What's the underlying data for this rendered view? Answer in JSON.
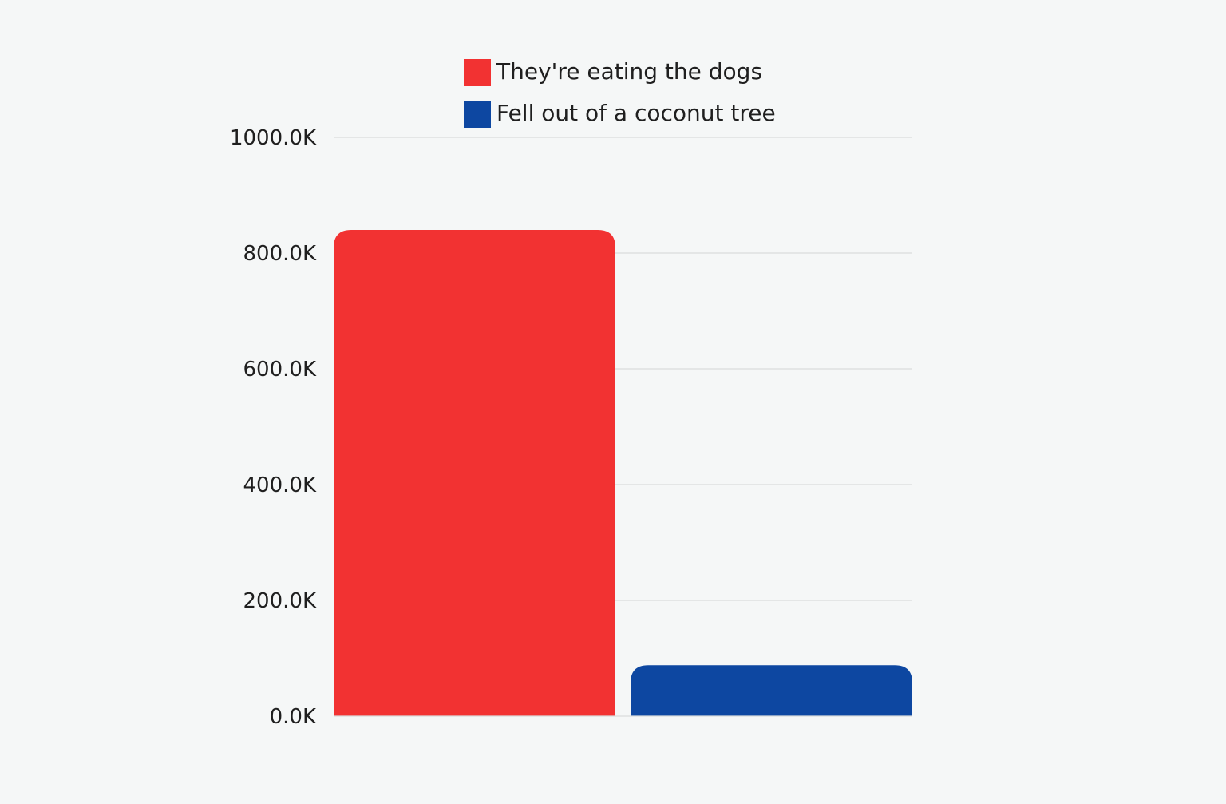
{
  "chart_data": {
    "type": "bar",
    "title": "",
    "xlabel": "",
    "ylabel": "",
    "ylim": [
      0,
      1000000
    ],
    "y_ticks": [
      {
        "value": 0,
        "label": "0.0K"
      },
      {
        "value": 200000,
        "label": "200.0K"
      },
      {
        "value": 400000,
        "label": "400.0K"
      },
      {
        "value": 600000,
        "label": "600.0K"
      },
      {
        "value": 800000,
        "label": "800.0K"
      },
      {
        "value": 1000000,
        "label": "1000.0K"
      }
    ],
    "grid": true,
    "legend_position": "top-center",
    "series": [
      {
        "name": "They're eating the dogs",
        "value": 840000,
        "color": "#f23232"
      },
      {
        "name": "Fell out of a coconut tree",
        "value": 88000,
        "color": "#0d47a1"
      }
    ]
  }
}
